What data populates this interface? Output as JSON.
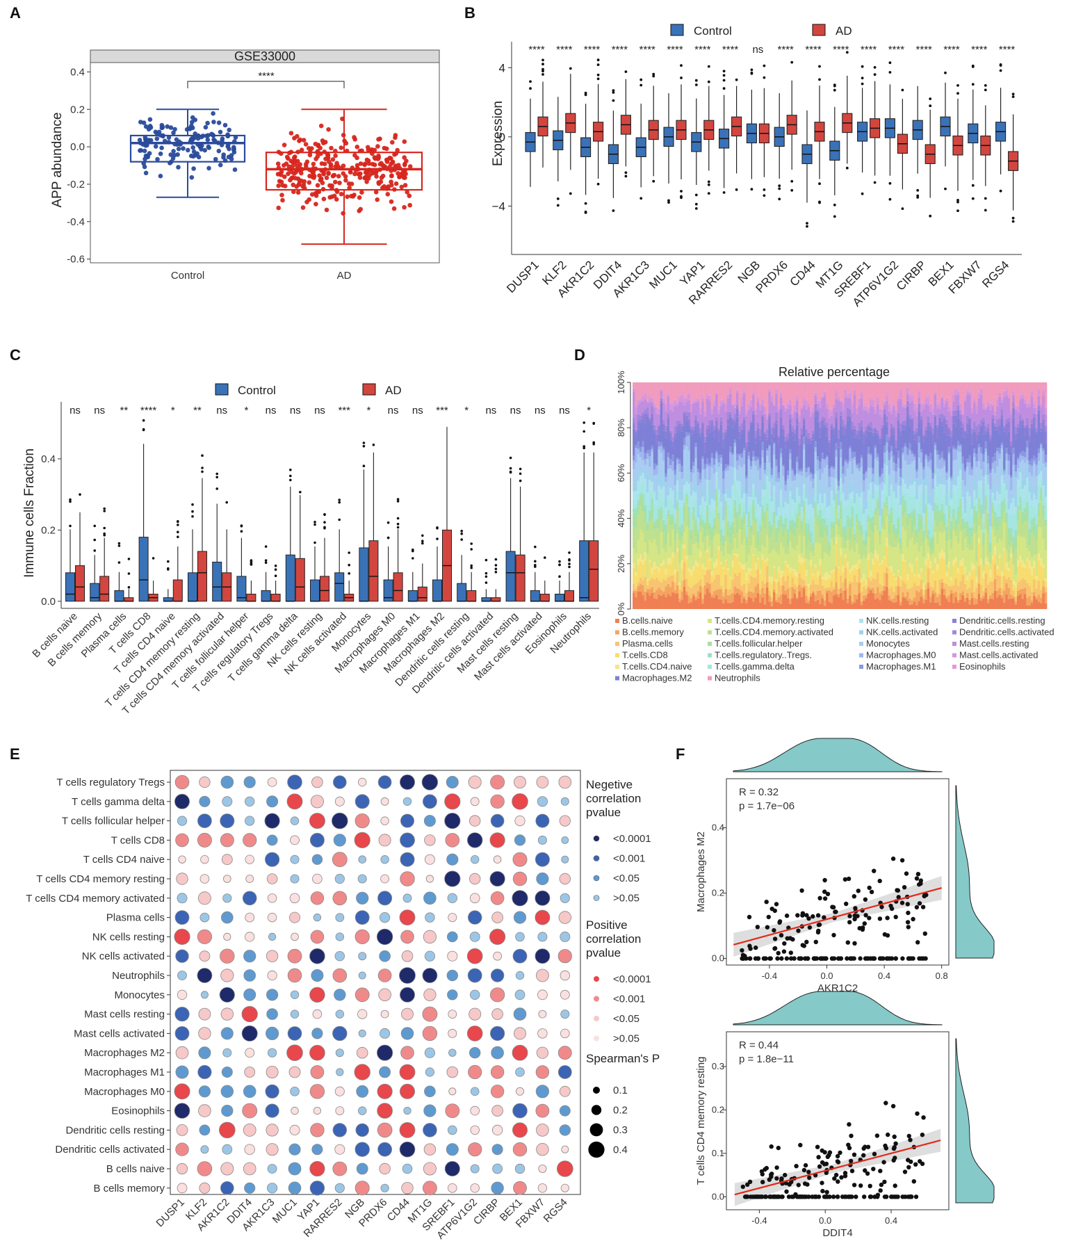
{
  "panels": {
    "A": "A",
    "B": "B",
    "C": "C",
    "D": "D",
    "E": "E",
    "F": "F"
  },
  "colors": {
    "control": "#2a4b9b",
    "ad": "#d7261e",
    "boxB_control": "#3a72b8",
    "boxB_ad": "#d2463f",
    "teal": "#86c9c9",
    "neg": "#4a90c8",
    "pos": "#f07b7b"
  },
  "chart_data": [
    {
      "id": "A",
      "type": "box",
      "strip_title": "GSE33000",
      "categories": [
        "Control",
        "AD"
      ],
      "ylabel": "APP abundance",
      "ylim": [
        -0.62,
        0.45
      ],
      "yticks": [
        "0.4",
        "0.2",
        "0.0",
        "-0.2",
        "-0.4",
        "-0.6"
      ],
      "significance": "****",
      "stats": [
        {
          "q1": -0.08,
          "median": 0.02,
          "q3": 0.06,
          "lo": -0.27,
          "hi": 0.2
        },
        {
          "q1": -0.23,
          "median": -0.12,
          "q3": -0.03,
          "lo": -0.52,
          "hi": 0.2
        }
      ]
    },
    {
      "id": "B",
      "type": "box",
      "legend": [
        "Control",
        "AD"
      ],
      "ylabel": "Expression",
      "ylim": [
        -6.8,
        5.5
      ],
      "yticks": [
        "4",
        "0",
        "−4"
      ],
      "categories": [
        "DUSP1",
        "KLF2",
        "AKR1C2",
        "DDIT4",
        "AKR1C3",
        "MUC1",
        "YAP1",
        "RARRES2",
        "NGB",
        "PRDX6",
        "CD44",
        "MT1G",
        "SREBF1",
        "ATP6V1G2",
        "CIRBP",
        "BEX1",
        "FBXW7",
        "RGS4"
      ],
      "significance": [
        "****",
        "****",
        "****",
        "****",
        "****",
        "****",
        "****",
        "****",
        "ns",
        "****",
        "****",
        "****",
        "****",
        "****",
        "****",
        "****",
        "****",
        "****"
      ],
      "control_median": [
        -0.3,
        -0.2,
        -0.6,
        -1.0,
        -0.6,
        0.0,
        -0.3,
        -0.1,
        0.2,
        0.0,
        -1.0,
        -0.8,
        0.3,
        0.5,
        0.4,
        0.6,
        0.2,
        0.3
      ],
      "ad_median": [
        0.6,
        0.8,
        0.3,
        0.7,
        0.4,
        0.4,
        0.4,
        0.6,
        0.2,
        0.7,
        0.3,
        0.8,
        0.5,
        -0.4,
        -1.0,
        -0.5,
        -0.5,
        -1.4
      ]
    },
    {
      "id": "C",
      "type": "box",
      "legend": [
        "Control",
        "AD"
      ],
      "ylabel": "Immune cells Fraction",
      "ylim": [
        -0.02,
        0.56
      ],
      "yticks": [
        "0.4",
        "0.2",
        "0.0"
      ],
      "categories": [
        "B cells naive",
        "B cells memory",
        "Plasma cells",
        "T cells CD8",
        "T cells CD4 naive",
        "T cells CD4 memory resting",
        "T cells CD4 memory activated",
        "T cells follicular helper",
        "T cells regulatory Tregs",
        "T cells gamma delta",
        "NK cells resting",
        "NK cells activated",
        "Monocytes",
        "Macrophages M0",
        "Macrophages M1",
        "Macrophages M2",
        "Dendritic cells resting",
        "Dendritic cells activated",
        "Mast cells resting",
        "Mast cells activated",
        "Eosinophils",
        "Neutrophils"
      ],
      "significance": [
        "ns",
        "ns",
        "**",
        "****",
        "*",
        "**",
        "ns",
        "*",
        "ns",
        "ns",
        "ns",
        "***",
        "*",
        "ns",
        "ns",
        "***",
        "*",
        "ns",
        "ns",
        "ns",
        "ns",
        "*"
      ],
      "control_q3": [
        0.08,
        0.05,
        0.03,
        0.18,
        0.01,
        0.08,
        0.11,
        0.07,
        0.03,
        0.13,
        0.06,
        0.08,
        0.15,
        0.06,
        0.03,
        0.06,
        0.05,
        0.01,
        0.14,
        0.03,
        0.02,
        0.17
      ],
      "ad_q3": [
        0.1,
        0.07,
        0.01,
        0.02,
        0.06,
        0.14,
        0.08,
        0.02,
        0.02,
        0.12,
        0.07,
        0.02,
        0.17,
        0.08,
        0.04,
        0.2,
        0.03,
        0.01,
        0.13,
        0.02,
        0.03,
        0.17
      ],
      "control_median": [
        0.02,
        0.01,
        0.0,
        0.06,
        0.0,
        0.0,
        0.04,
        0.01,
        0.0,
        0.0,
        0.0,
        0.05,
        0.0,
        0.01,
        0.0,
        0.0,
        0.0,
        0.0,
        0.08,
        0.0,
        0.0,
        0.01
      ],
      "ad_median": [
        0.04,
        0.02,
        0.0,
        0.01,
        0.0,
        0.08,
        0.04,
        0.0,
        0.0,
        0.04,
        0.03,
        0.01,
        0.07,
        0.03,
        0.01,
        0.1,
        0.0,
        0.0,
        0.08,
        0.0,
        0.0,
        0.09
      ]
    },
    {
      "id": "D",
      "type": "bar",
      "title": "Relative percentage",
      "yticks": [
        "100%",
        "80%",
        "60%",
        "40%",
        "20%",
        "0%"
      ],
      "series": [
        {
          "name": "B.cells.naive",
          "color": "#f07f54",
          "share": 0.05
        },
        {
          "name": "B.cells.memory",
          "color": "#f4a460",
          "share": 0.03
        },
        {
          "name": "Plasma.cells",
          "color": "#f8c471",
          "share": 0.04
        },
        {
          "name": "T.cells.CD8",
          "color": "#f7dc6f",
          "share": 0.06
        },
        {
          "name": "T.cells.CD4.naive",
          "color": "#f3e78a",
          "share": 0.02
        },
        {
          "name": "T.cells.CD4.memory.resting",
          "color": "#d4e685",
          "share": 0.08
        },
        {
          "name": "T.cells.CD4.memory.activated",
          "color": "#bfe08f",
          "share": 0.07
        },
        {
          "name": "T.cells.follicular.helper",
          "color": "#a8e0a0",
          "share": 0.04
        },
        {
          "name": "T.cells.regulatory..Tregs.",
          "color": "#9de0c0",
          "share": 0.02
        },
        {
          "name": "T.cells.gamma.delta",
          "color": "#a5e6e0",
          "share": 0.06
        },
        {
          "name": "NK.cells.resting",
          "color": "#aee3ee",
          "share": 0.04
        },
        {
          "name": "NK.cells.activated",
          "color": "#9dd4ec",
          "share": 0.03
        },
        {
          "name": "Monocytes",
          "color": "#a8cdf0",
          "share": 0.07
        },
        {
          "name": "Macrophages.M0",
          "color": "#9fb7ee",
          "share": 0.04
        },
        {
          "name": "Macrophages.M1",
          "color": "#8a98e0",
          "share": 0.02
        },
        {
          "name": "Macrophages.M2",
          "color": "#7d80d6",
          "share": 0.1
        },
        {
          "name": "Dendritic.cells.resting",
          "color": "#8d7fd8",
          "share": 0.03
        },
        {
          "name": "Dendritic.cells.activated",
          "color": "#a187dc",
          "share": 0.02
        },
        {
          "name": "Mast.cells.resting",
          "color": "#c08ee0",
          "share": 0.07
        },
        {
          "name": "Mast.cells.activated",
          "color": "#d496dc",
          "share": 0.02
        },
        {
          "name": "Eosinophils",
          "color": "#e59ad2",
          "share": 0.01
        },
        {
          "name": "Neutrophils",
          "color": "#f19bbd",
          "share": 0.07
        }
      ]
    },
    {
      "id": "E",
      "type": "heatmap",
      "rows": [
        "T cells regulatory Tregs",
        "T cells gamma delta",
        "T cells follicular helper",
        "T cells CD8",
        "T cells CD4 naive",
        "T cells CD4 memory resting",
        "T cells CD4 memory activated",
        "Plasma cells",
        "NK cells resting",
        "NK cells activated",
        "Neutrophils",
        "Monocytes",
        "Mast cells resting",
        "Mast cells activated",
        "Macrophages M2",
        "Macrophages M1",
        "Macrophages M0",
        "Eosinophils",
        "Dendritic cells resting",
        "Dendritic cells activated",
        "B cells naive",
        "B cells memory"
      ],
      "cols": [
        "DUSP1",
        "KLF2",
        "AKR1C2",
        "DDIT4",
        "AKR1C3",
        "MUC1",
        "YAP1",
        "RARRES2",
        "NGB",
        "PRDX6",
        "CD44",
        "MT1G",
        "SREBF1",
        "ATP6V1G2",
        "CIRBP",
        "BEX1",
        "FBXW7",
        "RGS4"
      ],
      "legend_negative": {
        "title": [
          "Negetive",
          "correlation",
          "pvalue"
        ],
        "levels": [
          "<0.0001",
          "<0.001",
          "<0.05",
          ">0.05"
        ]
      },
      "legend_positive": {
        "title": [
          "Positive",
          "correlation",
          "pvalue"
        ],
        "levels": [
          "<0.0001",
          "<0.001",
          "<0.05",
          ">0.05"
        ]
      },
      "legend_size": {
        "title": "Spearman's P",
        "levels": [
          "0.1",
          "0.2",
          "0.3",
          "0.4"
        ]
      }
    },
    {
      "id": "F1",
      "type": "scatter",
      "xlabel": "AKR1C2",
      "ylabel": "Macrophages M2",
      "stat_r": "R = 0.32",
      "stat_p": "p = 1.7e−06",
      "xlim": [
        -0.7,
        0.85
      ],
      "ylim": [
        -0.02,
        0.55
      ],
      "xticks": [
        "-0.4",
        "0.0",
        "0.4",
        "0.8"
      ],
      "yticks": [
        "0.4",
        "0.2",
        "0.0"
      ]
    },
    {
      "id": "F2",
      "type": "scatter",
      "xlabel": "DDIT4",
      "ylabel": "T cells CD4 memory resting",
      "stat_r": "R = 0.44",
      "stat_p": "p = 1.8e−11",
      "xlim": [
        -0.6,
        0.75
      ],
      "ylim": [
        -0.03,
        0.38
      ],
      "xticks": [
        "-0.4",
        "0.0",
        "0.4"
      ],
      "yticks": [
        "0.3",
        "0.2",
        "0.1",
        "0.0"
      ]
    }
  ]
}
